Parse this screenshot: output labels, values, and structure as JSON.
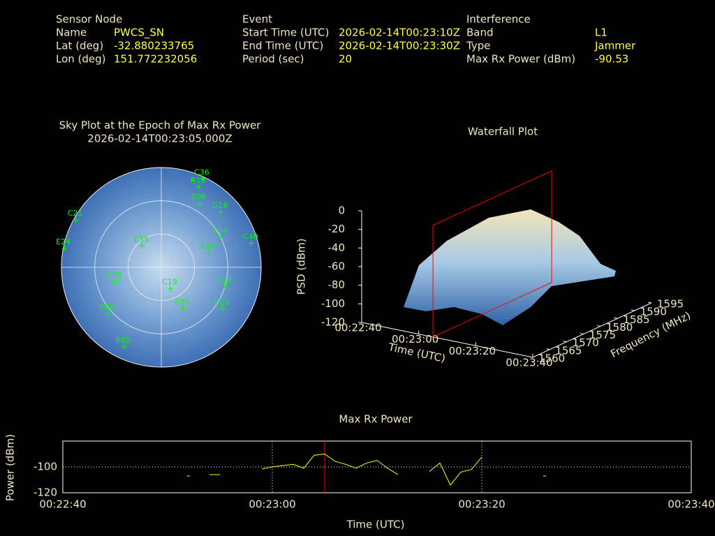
{
  "header": {
    "sensor": {
      "title": "Sensor Node",
      "rows": [
        [
          "Name",
          "PWCS_SN"
        ],
        [
          "Lat (deg)",
          "-32.880233765"
        ],
        [
          "Lon (deg)",
          "151.772232056"
        ]
      ]
    },
    "event": {
      "title": "Event",
      "rows": [
        [
          "Start Time (UTC)",
          "2026-02-14T00:23:10Z"
        ],
        [
          "End Time (UTC)",
          "2026-02-14T00:23:30Z"
        ],
        [
          "Period (sec)",
          "20"
        ]
      ]
    },
    "interference": {
      "title": "Interference",
      "rows": [
        [
          "Band",
          "L1"
        ],
        [
          "Type",
          "Jammer"
        ],
        [
          "Max Rx Power (dBm)",
          "-90.53"
        ]
      ]
    }
  },
  "chart_data": [
    {
      "type": "skyplot",
      "title": "Sky Plot at the Epoch of Max Rx Power",
      "subtitle": "2026-02-14T00:23:05.000Z",
      "color": "#00ff00",
      "ylim": [
        90,
        0
      ],
      "yticks": [
        30,
        60
      ],
      "satellites": [
        {
          "name": "C36",
          "az": 25,
          "el": 2
        },
        {
          "name": "R19",
          "az": 25,
          "el": 10
        },
        {
          "name": "E06",
          "az": 31,
          "el": 23
        },
        {
          "name": "G18",
          "az": 47,
          "el": 17
        },
        {
          "name": "R14",
          "az": 63,
          "el": 30
        },
        {
          "name": "C40",
          "az": 75,
          "el": 6
        },
        {
          "name": "E18",
          "az": 73,
          "el": 45
        },
        {
          "name": "G23",
          "az": 107,
          "el": 30
        },
        {
          "name": "C20",
          "az": 124,
          "el": 23
        },
        {
          "name": "E05",
          "az": 152,
          "el": 48
        },
        {
          "name": "C19",
          "az": 157,
          "el": 69
        },
        {
          "name": "G02",
          "az": 229,
          "el": 26
        },
        {
          "name": "E02",
          "az": 205,
          "el": 11
        },
        {
          "name": "C21",
          "az": 299,
          "el": 2
        },
        {
          "name": "E24",
          "az": 281,
          "el": 1
        },
        {
          "name": "C35",
          "az": 318,
          "el": 64
        },
        {
          "name": "C38",
          "az": 252,
          "el": 46
        }
      ]
    },
    {
      "type": "waterfall3d",
      "title": "Waterfall Plot",
      "xlabel": "Time (UTC)",
      "ylabel": "Frequency (MHz)",
      "zlabel": "PSD (dBm)",
      "xlim": [
        "00:22:40",
        "00:23:40"
      ],
      "xticks": [
        "00:22:40",
        "00:23:00",
        "00:23:20",
        "00:23:40"
      ],
      "ylim": [
        1560,
        1595
      ],
      "yticks": [
        1560,
        1565,
        1570,
        1575,
        1580,
        1585,
        1590,
        1595
      ],
      "zlim": [
        -120,
        0
      ],
      "zticks": [
        0,
        -20,
        -40,
        -60,
        -80,
        -100,
        -120
      ],
      "marker_x": "00:23:05",
      "marker_color": "#ff0000"
    },
    {
      "type": "line",
      "title": "Max Rx Power",
      "xlabel": "Time (UTC)",
      "ylabel": "Power (dBm)",
      "color": "#ffff00",
      "grid": true,
      "xlim": [
        "00:22:40",
        "00:23:40"
      ],
      "xticks": [
        "00:22:40",
        "00:23:00",
        "00:23:20",
        "00:23:40"
      ],
      "ylim": [
        -120,
        -80
      ],
      "yticks": [
        -100,
        -120
      ],
      "marker_x": "00:23:05",
      "marker_color": "#ff0000",
      "x": [
        "00:22:52",
        null,
        "00:22:54",
        "00:22:55",
        null,
        "00:22:59",
        "00:23:00",
        "00:23:01",
        "00:23:02",
        "00:23:03",
        "00:23:04",
        "00:23:05",
        "00:23:06",
        "00:23:07",
        "00:23:08",
        "00:23:09",
        "00:23:10",
        "00:23:11",
        "00:23:12",
        null,
        "00:23:15",
        "00:23:16",
        "00:23:17",
        "00:23:18",
        "00:23:19",
        "00:23:20",
        null,
        "00:23:26"
      ],
      "values": [
        -107,
        null,
        -106,
        -106,
        null,
        -101.6,
        -100,
        -99,
        -98,
        -101,
        -91,
        -90,
        -95.7,
        -98,
        -101,
        -97,
        -95,
        -101,
        -106,
        null,
        -103.5,
        -97,
        -114,
        -104,
        -102,
        -92.4,
        null,
        -107
      ]
    }
  ]
}
